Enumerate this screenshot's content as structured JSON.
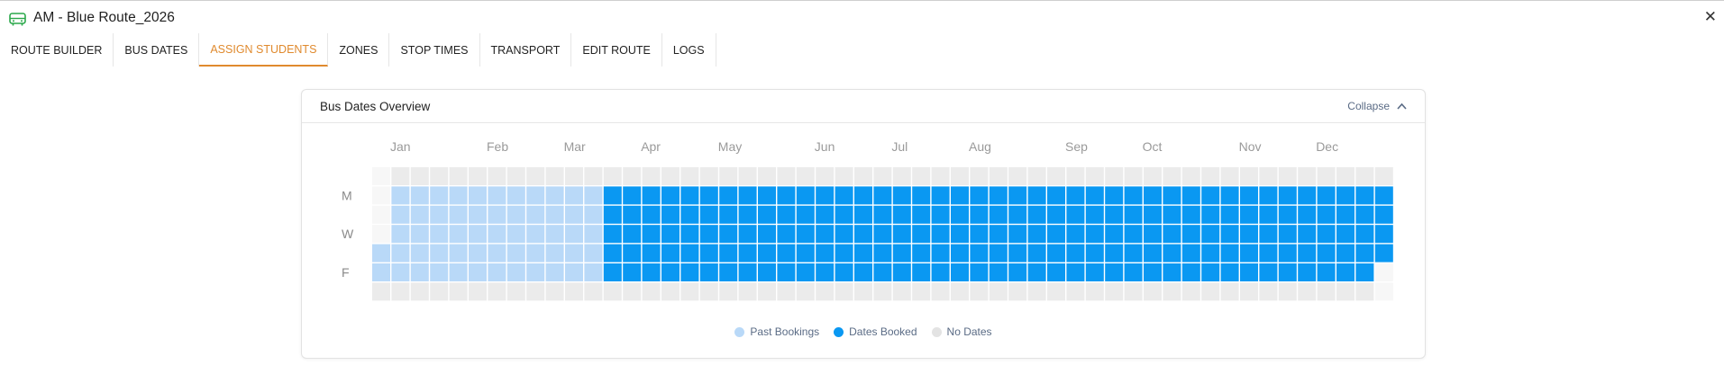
{
  "window": {
    "title": "AM - Blue Route_2026",
    "close_glyph": "✕",
    "accent_color": "#e08a2e",
    "route_icon_color": "#2aa84a"
  },
  "tabs": [
    {
      "label": "ROUTE BUILDER",
      "active": false
    },
    {
      "label": "BUS DATES",
      "active": false
    },
    {
      "label": "ASSIGN STUDENTS",
      "active": true
    },
    {
      "label": "ZONES",
      "active": false
    },
    {
      "label": "STOP TIMES",
      "active": false
    },
    {
      "label": "TRANSPORT",
      "active": false
    },
    {
      "label": "EDIT ROUTE",
      "active": false
    },
    {
      "label": "LOGS",
      "active": false
    }
  ],
  "card": {
    "title": "Bus Dates Overview",
    "collapse_label": "Collapse"
  },
  "heatmap": {
    "year": 2026,
    "months": [
      "Jan",
      "Feb",
      "Mar",
      "Apr",
      "May",
      "Jun",
      "Jul",
      "Aug",
      "Sep",
      "Oct",
      "Nov",
      "Dec"
    ],
    "weekday_labels": [
      "M",
      "W",
      "F"
    ],
    "past_bookings_through": "2026-03-20",
    "dates_booked_through": "2026-12-31",
    "colors": {
      "past": "#b9d9f8",
      "booked": "#0a98f2",
      "none": "#ebebeb",
      "month_label": "#9a9a9a",
      "weekday_label": "#8a8a8a"
    }
  },
  "legend": [
    {
      "label": "Past Bookings",
      "color": "#b9d9f8"
    },
    {
      "label": "Dates Booked",
      "color": "#0a98f2"
    },
    {
      "label": "No Dates",
      "color": "#e3e3e3"
    }
  ]
}
